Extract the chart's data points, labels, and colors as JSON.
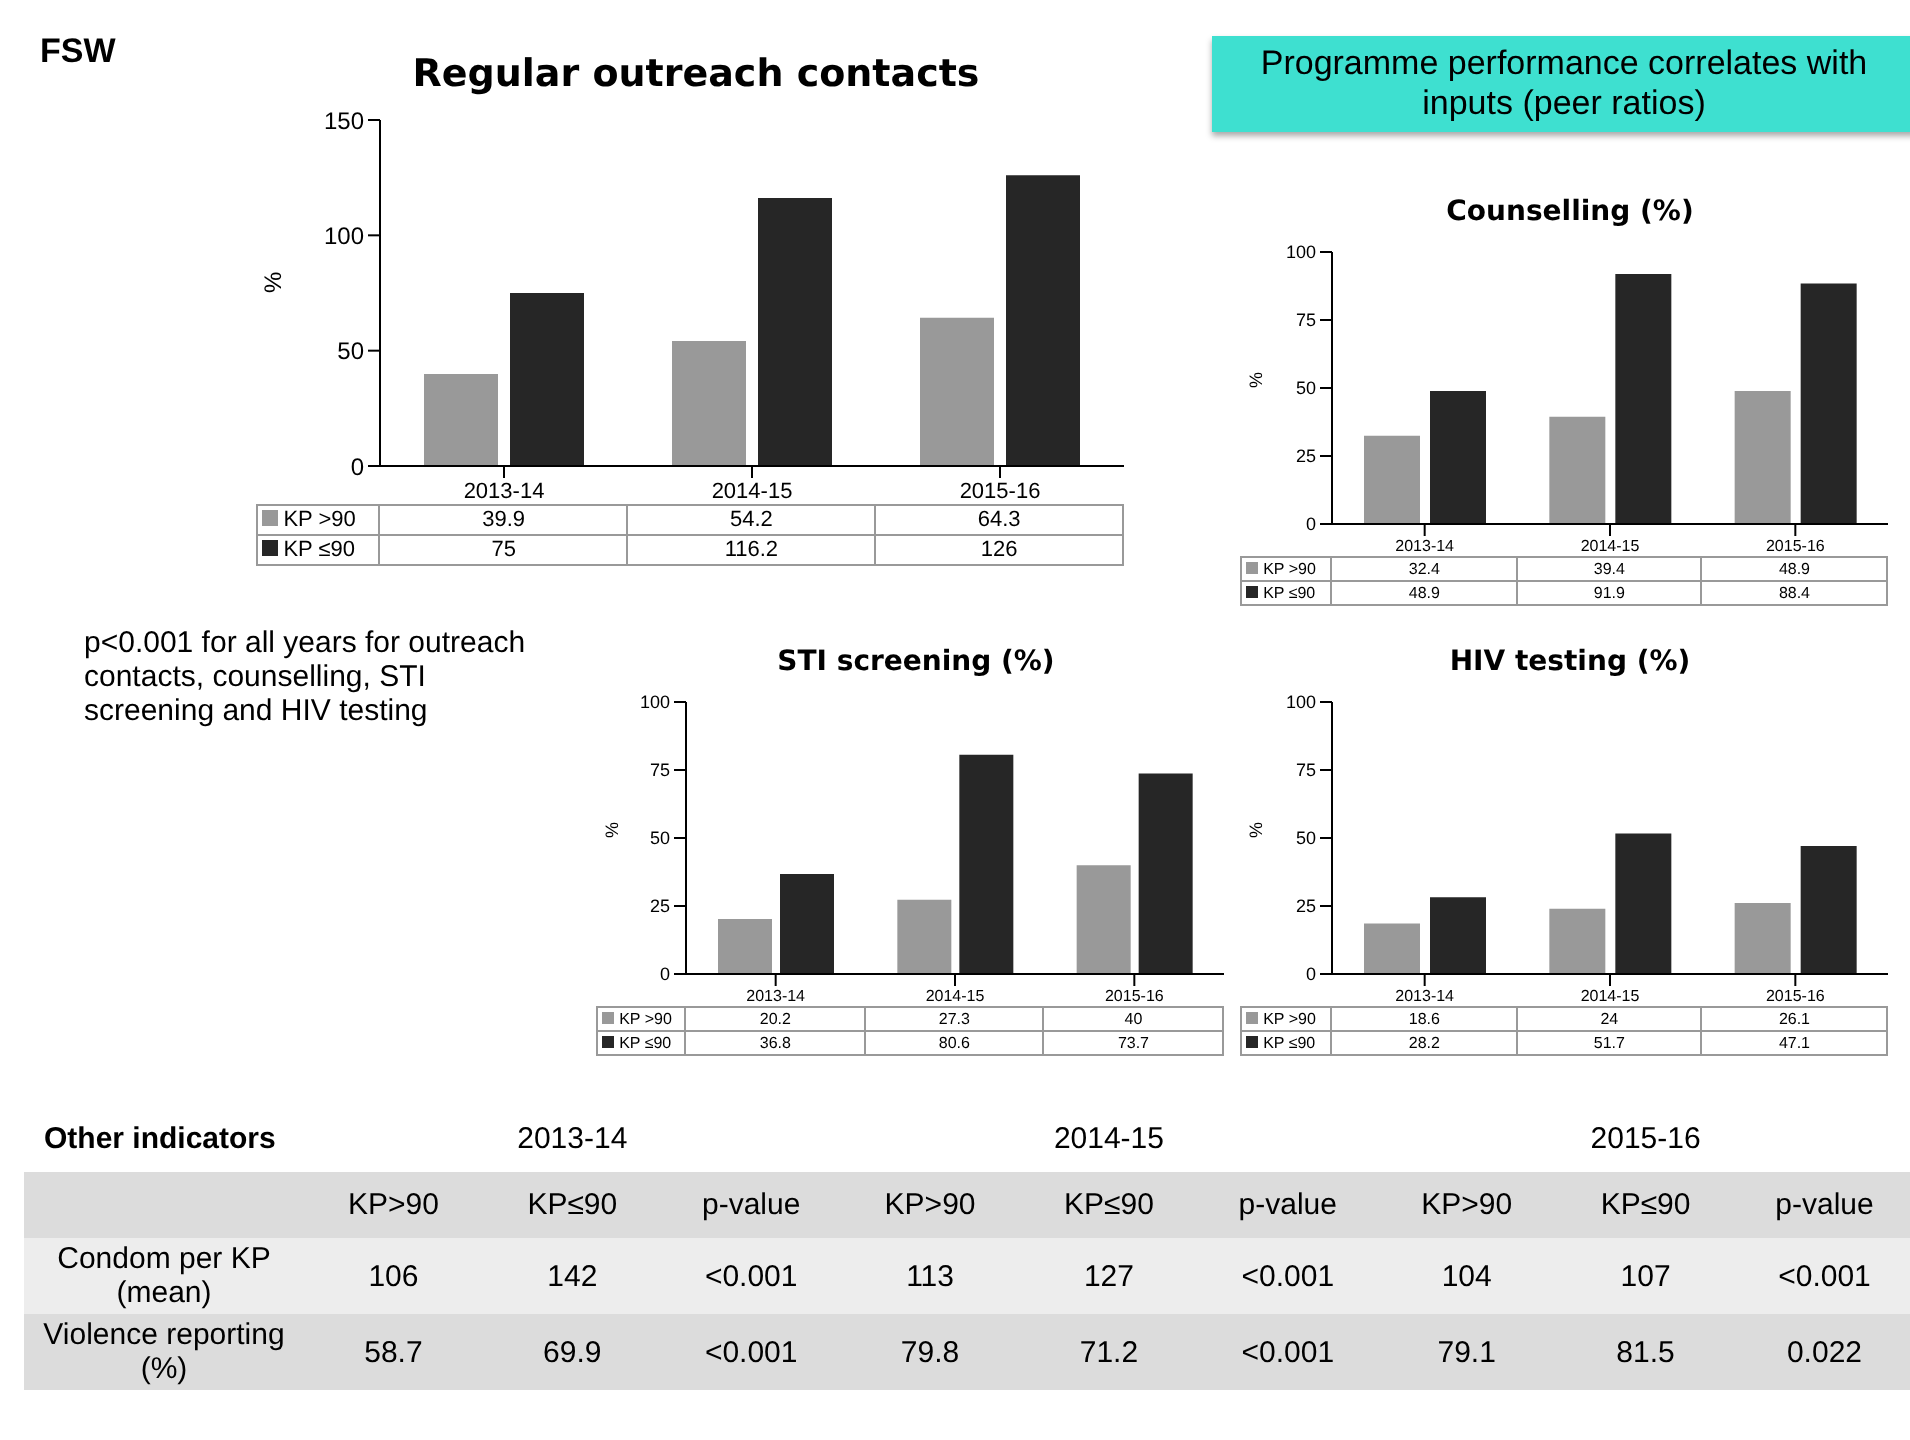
{
  "chart_data": [
    {
      "type": "bar",
      "title": "Regular outreach contacts",
      "ylabel": "%",
      "categories": [
        "2013-14",
        "2014-15",
        "2015-16"
      ],
      "series": [
        {
          "name": "KP >90",
          "color": "#999999",
          "values": [
            39.9,
            54.2,
            64.3
          ]
        },
        {
          "name": "KP ≤90",
          "color": "#262626",
          "values": [
            75,
            116.2,
            126
          ]
        }
      ],
      "ylim": [
        0,
        150
      ],
      "yticks": [
        0,
        50,
        100,
        150
      ],
      "grid": false,
      "legend": "bottom",
      "data_labels": true,
      "annotations": [
        "FSW",
        "Programme performance correlates with inputs (peer ratios)",
        "p<0.001 for all years for outreach contacts, counselling, STI screening and HIV testing"
      ]
    },
    {
      "type": "bar",
      "title": "Counselling (%)",
      "ylabel": "%",
      "categories": [
        "2013-14",
        "2014-15",
        "2015-16"
      ],
      "series": [
        {
          "name": "KP >90",
          "color": "#999999",
          "values": [
            32.4,
            39.4,
            48.9
          ]
        },
        {
          "name": "KP ≤90",
          "color": "#262626",
          "values": [
            48.9,
            91.9,
            88.4
          ]
        }
      ],
      "ylim": [
        0,
        100
      ],
      "yticks": [
        0,
        25,
        50,
        75,
        100
      ],
      "grid": false,
      "legend": "bottom",
      "data_labels": true
    },
    {
      "type": "bar",
      "title": "STI screening (%)",
      "ylabel": "%",
      "categories": [
        "2013-14",
        "2014-15",
        "2015-16"
      ],
      "series": [
        {
          "name": "KP >90",
          "color": "#999999",
          "values": [
            20.2,
            27.3,
            40
          ]
        },
        {
          "name": "KP ≤90",
          "color": "#262626",
          "values": [
            36.8,
            80.6,
            73.7
          ]
        }
      ],
      "ylim": [
        0,
        100
      ],
      "yticks": [
        0,
        25,
        50,
        75,
        100
      ],
      "grid": false,
      "legend": "bottom",
      "data_labels": true
    },
    {
      "type": "bar",
      "title": "HIV testing (%)",
      "ylabel": "%",
      "categories": [
        "2013-14",
        "2014-15",
        "2015-16"
      ],
      "series": [
        {
          "name": "KP >90",
          "color": "#999999",
          "values": [
            18.6,
            24,
            26.1
          ]
        },
        {
          "name": "KP ≤90",
          "color": "#262626",
          "values": [
            28.2,
            51.7,
            47.1
          ]
        }
      ],
      "ylim": [
        0,
        100
      ],
      "yticks": [
        0,
        25,
        50,
        75,
        100
      ],
      "grid": false,
      "legend": "bottom",
      "data_labels": true
    },
    {
      "type": "other",
      "title": "Other indicators",
      "annotations": [
        "2013-14",
        "2014-15",
        "2015-16"
      ],
      "categories": [
        "KP>90",
        "KP≤90",
        "p-value",
        "KP>90",
        "KP≤90",
        "p-value",
        "KP>90",
        "KP≤90",
        "p-value"
      ],
      "y_categories": [
        "Condom per KP (mean)",
        "Violence reporting (%)"
      ],
      "cell_labels": [
        [
          "106",
          "142",
          "<0.001",
          "113",
          "127",
          "<0.001",
          "104",
          "107",
          "<0.001"
        ],
        [
          "58.7",
          "69.9",
          "<0.001",
          "79.8",
          "71.2",
          "<0.001",
          "79.1",
          "81.5",
          "0.022"
        ]
      ]
    }
  ]
}
